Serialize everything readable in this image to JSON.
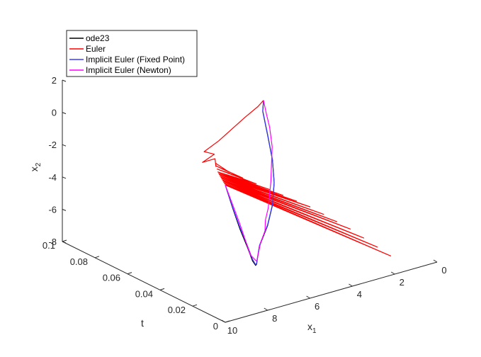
{
  "chart_data": {
    "type": "line",
    "view": "3d",
    "title": "",
    "xlabel": "x",
    "xlabel_sub": "1",
    "ylabel": "t",
    "zlabel": "x",
    "zlabel_sub": "2",
    "xlim": [
      0,
      10
    ],
    "ylim": [
      0,
      0.1
    ],
    "zlim": [
      -8,
      2
    ],
    "x_ticks": [
      "0",
      "2",
      "4",
      "6",
      "8",
      "10"
    ],
    "y_ticks": [
      "0",
      "0.02",
      "0.04",
      "0.06",
      "0.08",
      "0.1"
    ],
    "z_ticks": [
      "-8",
      "-6",
      "-4",
      "-2",
      "0",
      "2"
    ],
    "grid": false,
    "legend_position": "top-left",
    "series": [
      {
        "name": "ode23",
        "color": "#000000",
        "x": [
          10,
          9.5,
          9.0,
          8.5,
          8.1,
          7.8,
          7.6,
          7.4,
          7.0,
          6.0,
          5.0,
          4.0,
          3.0,
          2.0,
          1.0,
          0.5
        ],
        "t": [
          0,
          0.002,
          0.004,
          0.006,
          0.008,
          0.01,
          0.012,
          0.014,
          0.018,
          0.026,
          0.036,
          0.048,
          0.062,
          0.078,
          0.094,
          0.1
        ],
        "z": [
          0.5,
          -1.2,
          -2.8,
          -4.2,
          -5.3,
          -5.8,
          -5.9,
          -5.7,
          -5.3,
          -4.8,
          -4.4,
          -4.0,
          -3.7,
          -3.3,
          -3.0,
          -2.8
        ]
      },
      {
        "name": "Euler",
        "color": "#ff0000",
        "x": [
          10,
          2,
          9.65,
          2.25,
          9.3,
          2.5,
          8.95,
          2.75,
          8.6,
          3.0,
          8.25,
          3.25,
          7.9,
          3.5,
          7.55,
          3.75,
          7.2,
          4.0,
          6.85,
          4.25,
          6.5,
          4.5,
          6.15,
          4.75,
          5.8,
          5.0,
          5.45,
          5.25,
          5.1,
          5.5,
          4.75,
          5.0,
          4.0,
          3.0,
          2.0,
          1.0,
          0.5
        ],
        "t": [
          0,
          0.0025,
          0.005,
          0.0075,
          0.01,
          0.0125,
          0.015,
          0.0175,
          0.02,
          0.0225,
          0.025,
          0.0275,
          0.03,
          0.0325,
          0.035,
          0.0375,
          0.04,
          0.0425,
          0.045,
          0.0475,
          0.05,
          0.0525,
          0.055,
          0.0575,
          0.06,
          0.0625,
          0.065,
          0.0675,
          0.07,
          0.0725,
          0.075,
          0.078,
          0.082,
          0.087,
          0.092,
          0.097,
          0.1
        ],
        "z": [
          0.5,
          -7.0,
          0.2,
          -6.6,
          -0.1,
          -6.2,
          -0.4,
          -5.8,
          -0.7,
          -5.5,
          -1.0,
          -5.2,
          -1.3,
          -4.9,
          -1.6,
          -4.7,
          -1.9,
          -4.5,
          -2.2,
          -4.3,
          -2.5,
          -4.1,
          -2.7,
          -3.9,
          -2.9,
          -3.7,
          -3.1,
          -3.5,
          -3.2,
          -3.4,
          -3.3,
          -3.2,
          -3.1,
          -3.0,
          -2.9,
          -2.85,
          -2.8
        ]
      },
      {
        "name": "Implicit Euler (Fixed Point)",
        "color": "#3b3bff",
        "x": [
          10,
          9.5,
          9.0,
          8.5,
          8.1,
          7.8,
          7.6,
          7.4,
          7.0,
          6.0,
          5.0,
          4.0,
          3.0,
          2.0,
          1.0,
          0.5
        ],
        "t": [
          0,
          0.002,
          0.004,
          0.006,
          0.008,
          0.01,
          0.012,
          0.014,
          0.018,
          0.026,
          0.036,
          0.048,
          0.062,
          0.078,
          0.094,
          0.1
        ],
        "z": [
          0.5,
          -1.15,
          -2.7,
          -4.1,
          -5.2,
          -5.75,
          -5.85,
          -5.65,
          -5.25,
          -4.75,
          -4.35,
          -3.95,
          -3.65,
          -3.25,
          -2.95,
          -2.8
        ]
      },
      {
        "name": "Implicit Euler (Newton)",
        "color": "#ff00ff",
        "x": [
          10,
          9.0,
          8.2,
          7.7,
          7.5,
          7.3,
          6.8,
          6.2,
          5.8,
          5.2,
          4.6,
          4.0,
          3.2,
          2.4,
          1.6,
          1.0,
          0.5
        ],
        "t": [
          0,
          0.004,
          0.008,
          0.011,
          0.013,
          0.015,
          0.02,
          0.025,
          0.03,
          0.036,
          0.043,
          0.05,
          0.06,
          0.07,
          0.082,
          0.092,
          0.1
        ],
        "z": [
          0.5,
          -2.5,
          -4.9,
          -5.6,
          -5.75,
          -5.6,
          -5.3,
          -5.0,
          -4.75,
          -4.5,
          -4.25,
          -4.0,
          -3.7,
          -3.45,
          -3.15,
          -2.95,
          -2.8
        ]
      }
    ]
  }
}
